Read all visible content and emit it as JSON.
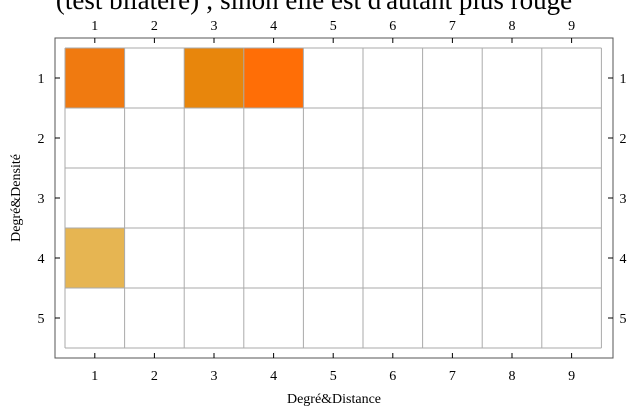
{
  "caption": "(test bilatère) ; sinon elle est d'autant plus rouge",
  "chart_data": {
    "type": "heatmap",
    "title": "",
    "xlabel": "Degré&Distance",
    "ylabel": "Degré&Densité",
    "x_categories": [
      "1",
      "2",
      "3",
      "4",
      "5",
      "6",
      "7",
      "8",
      "9"
    ],
    "y_categories": [
      "1",
      "2",
      "3",
      "4",
      "5"
    ],
    "grid": true,
    "cells": [
      {
        "x": "1",
        "y": "1",
        "color": "#f07a10"
      },
      {
        "x": "3",
        "y": "1",
        "color": "#e8860c"
      },
      {
        "x": "4",
        "y": "1",
        "color": "#ff6e06"
      },
      {
        "x": "1",
        "y": "4",
        "color": "#e6b552"
      }
    ],
    "empty_color": "#ffffff",
    "grid_color": "#aaaaaa",
    "frame_color": "#555555"
  }
}
